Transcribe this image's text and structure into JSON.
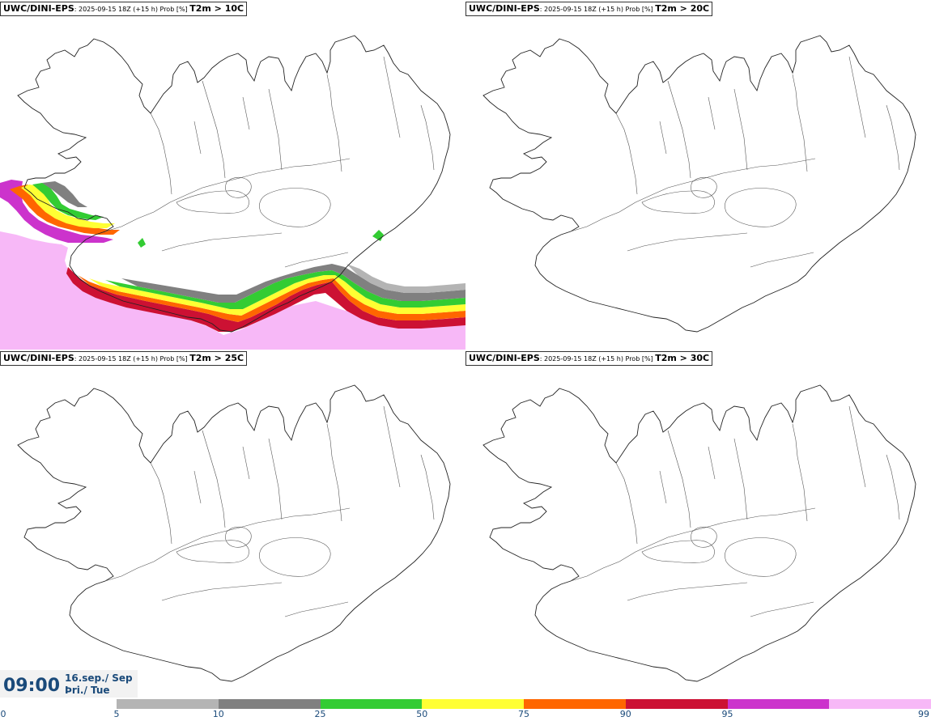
{
  "panels": [
    {
      "model": "UWC/DINI-EPS",
      "meta": ": 2025-09-15 18Z (+15 h) Prob [%] ",
      "var": "T2m > 10C",
      "has_field": true
    },
    {
      "model": "UWC/DINI-EPS",
      "meta": ": 2025-09-15 18Z (+15 h) Prob [%] ",
      "var": "T2m > 20C",
      "has_field": false
    },
    {
      "model": "UWC/DINI-EPS",
      "meta": ": 2025-09-15 18Z (+15 h) Prob [%] ",
      "var": "T2m > 25C",
      "has_field": false
    },
    {
      "model": "UWC/DINI-EPS",
      "meta": ": 2025-09-15 18Z (+15 h) Prob [%] ",
      "var": "T2m > 30C",
      "has_field": false
    }
  ],
  "time_box": {
    "time": "09:00",
    "date": "16.sep./ Sep",
    "day": "Þri./ Tue"
  },
  "legend": {
    "levels": [
      "0",
      "5",
      "10",
      "25",
      "50",
      "75",
      "90",
      "95",
      "99"
    ],
    "colors": [
      "#b4b4b4",
      "#808080",
      "#33cc33",
      "#ffff33",
      "#ff6600",
      "#cc1133",
      "#cc33cc",
      "#f7b8f7"
    ]
  }
}
